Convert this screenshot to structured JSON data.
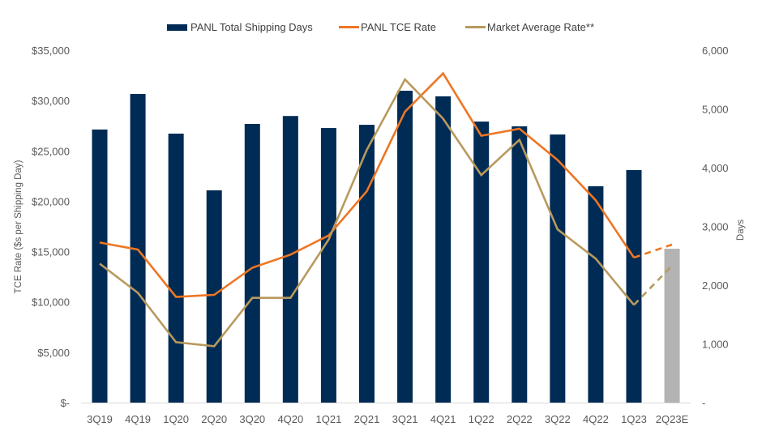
{
  "chart_data": {
    "type": "bar+line",
    "title": "",
    "categories": [
      "3Q19",
      "4Q19",
      "1Q20",
      "2Q20",
      "3Q20",
      "4Q20",
      "1Q21",
      "2Q21",
      "3Q21",
      "4Q21",
      "1Q22",
      "2Q22",
      "3Q22",
      "4Q22",
      "1Q23",
      "2Q23E"
    ],
    "series": [
      {
        "name": "PANL Total Shipping Days",
        "type": "bar",
        "axis": "right",
        "color": "#002B55",
        "estimate_color": "#B3B3B3",
        "estimate_from_index": 15,
        "values": [
          4650,
          5255,
          4580,
          3615,
          4745,
          4880,
          4675,
          4730,
          5310,
          5215,
          4785,
          4705,
          4565,
          3685,
          3960,
          2620
        ]
      },
      {
        "name": "PANL TCE Rate",
        "type": "line",
        "axis": "left",
        "color": "#EE7623",
        "dashed_from_index": 14,
        "values": [
          15900,
          15200,
          10500,
          10700,
          13400,
          14700,
          16600,
          21000,
          28900,
          32700,
          26500,
          27200,
          24100,
          20100,
          14400,
          15700
        ]
      },
      {
        "name": "Market Average Rate**",
        "type": "line",
        "axis": "left",
        "color": "#B89A5E",
        "dashed_from_index": 14,
        "values": [
          13800,
          10900,
          6000,
          5600,
          10400,
          10400,
          16200,
          25100,
          32100,
          28200,
          22600,
          26100,
          17200,
          14300,
          9700,
          13600
        ]
      }
    ],
    "left_axis": {
      "label": "TCE Rate ($s per Shipping Day)",
      "range": [
        0,
        35000
      ],
      "ticks": [
        0,
        5000,
        10000,
        15000,
        20000,
        25000,
        30000,
        35000
      ],
      "tick_labels": [
        "$-",
        "$5,000",
        "$10,000",
        "$15,000",
        "$20,000",
        "$25,000",
        "$30,000",
        "$35,000"
      ]
    },
    "right_axis": {
      "label": "Days",
      "range": [
        0,
        6000
      ],
      "ticks": [
        0,
        1000,
        2000,
        3000,
        4000,
        5000,
        6000
      ],
      "tick_labels": [
        "-",
        "1,000",
        "2,000",
        "3,000",
        "4,000",
        "5,000",
        "6,000"
      ]
    },
    "grid": false,
    "legend_position": "top-center"
  }
}
